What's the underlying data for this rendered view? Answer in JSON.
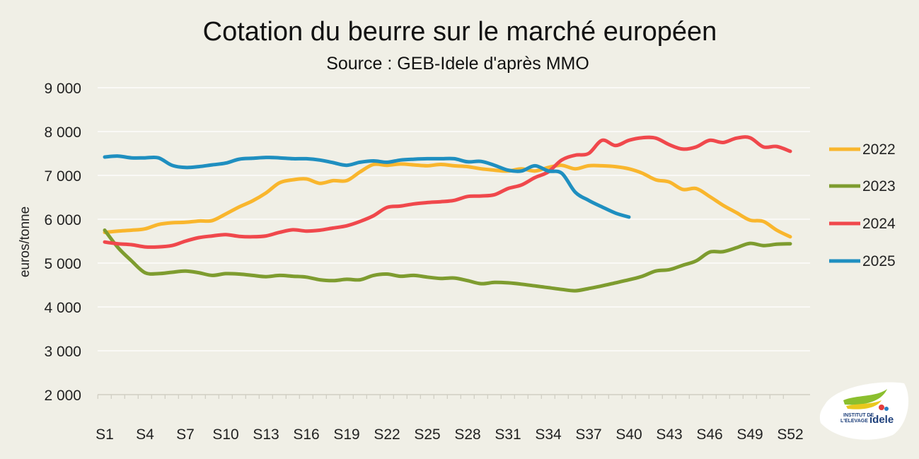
{
  "chart_data": {
    "type": "line",
    "title": "Cotation du beurre sur le marché européen",
    "subtitle": "Source : GEB-Idele d'après MMO",
    "ylabel": "euros/tonne",
    "xlabel": "",
    "ylim": [
      2000,
      9000
    ],
    "yticks": [
      2000,
      3000,
      4000,
      5000,
      6000,
      7000,
      8000,
      9000
    ],
    "ytick_labels": [
      "2 000",
      "3 000",
      "4 000",
      "5 000",
      "6 000",
      "7 000",
      "8 000",
      "9 000"
    ],
    "xlim": [
      1,
      52
    ],
    "xtick_labels": [
      "S1",
      "S4",
      "S7",
      "S10",
      "S13",
      "S16",
      "S19",
      "S22",
      "S25",
      "S28",
      "S31",
      "S34",
      "S37",
      "S40",
      "S43",
      "S46",
      "S49",
      "S52"
    ],
    "grid": "horizontal",
    "legend": "right",
    "series": [
      {
        "name": "2022",
        "color": "#f9b62d",
        "x": [
          1,
          2,
          3,
          4,
          5,
          6,
          7,
          8,
          9,
          10,
          11,
          12,
          13,
          14,
          15,
          16,
          17,
          18,
          19,
          20,
          21,
          22,
          23,
          24,
          25,
          26,
          27,
          28,
          29,
          30,
          31,
          32,
          33,
          34,
          35,
          36,
          37,
          38,
          39,
          40,
          41,
          42,
          43,
          44,
          45,
          46,
          47,
          48,
          49,
          50,
          51,
          52
        ],
        "y": [
          5700,
          5730,
          5750,
          5780,
          5880,
          5920,
          5930,
          5960,
          5970,
          6120,
          6280,
          6420,
          6600,
          6830,
          6900,
          6920,
          6820,
          6880,
          6880,
          7080,
          7250,
          7230,
          7260,
          7240,
          7220,
          7250,
          7220,
          7200,
          7150,
          7120,
          7100,
          7150,
          7100,
          7180,
          7230,
          7150,
          7220,
          7220,
          7200,
          7150,
          7050,
          6900,
          6850,
          6680,
          6700,
          6520,
          6320,
          6150,
          5980,
          5950,
          5750,
          5600
        ]
      },
      {
        "name": "2023",
        "color": "#7e9c2f",
        "x": [
          1,
          2,
          3,
          4,
          5,
          6,
          7,
          8,
          9,
          10,
          11,
          12,
          13,
          14,
          15,
          16,
          17,
          18,
          19,
          20,
          21,
          22,
          23,
          24,
          25,
          26,
          27,
          28,
          29,
          30,
          31,
          32,
          33,
          34,
          35,
          36,
          37,
          38,
          39,
          40,
          41,
          42,
          43,
          44,
          45,
          46,
          47,
          48,
          49,
          50,
          51,
          52
        ],
        "y": [
          5750,
          5350,
          5050,
          4780,
          4760,
          4790,
          4820,
          4780,
          4720,
          4760,
          4750,
          4720,
          4690,
          4720,
          4700,
          4680,
          4620,
          4600,
          4630,
          4620,
          4720,
          4750,
          4700,
          4720,
          4680,
          4650,
          4660,
          4600,
          4530,
          4560,
          4550,
          4520,
          4480,
          4440,
          4400,
          4370,
          4420,
          4480,
          4550,
          4620,
          4700,
          4820,
          4850,
          4950,
          5050,
          5250,
          5260,
          5350,
          5450,
          5400,
          5430,
          5440
        ]
      },
      {
        "name": "2024",
        "color": "#f0484c",
        "x": [
          1,
          2,
          3,
          4,
          5,
          6,
          7,
          8,
          9,
          10,
          11,
          12,
          13,
          14,
          15,
          16,
          17,
          18,
          19,
          20,
          21,
          22,
          23,
          24,
          25,
          26,
          27,
          28,
          29,
          30,
          31,
          32,
          33,
          34,
          35,
          36,
          37,
          38,
          39,
          40,
          41,
          42,
          43,
          44,
          45,
          46,
          47,
          48,
          49,
          50,
          51,
          52
        ],
        "y": [
          5480,
          5440,
          5420,
          5370,
          5370,
          5400,
          5500,
          5580,
          5620,
          5650,
          5610,
          5600,
          5620,
          5700,
          5760,
          5730,
          5750,
          5800,
          5850,
          5950,
          6080,
          6270,
          6300,
          6350,
          6380,
          6400,
          6430,
          6520,
          6530,
          6560,
          6700,
          6780,
          6950,
          7080,
          7350,
          7460,
          7500,
          7800,
          7680,
          7800,
          7860,
          7850,
          7700,
          7600,
          7650,
          7800,
          7750,
          7850,
          7860,
          7650,
          7660,
          7550
        ]
      },
      {
        "name": "2025",
        "color": "#1f8fc0",
        "x": [
          1,
          2,
          3,
          4,
          5,
          6,
          7,
          8,
          9,
          10,
          11,
          12,
          13,
          14,
          15,
          16,
          17,
          18,
          19,
          20,
          21,
          22,
          23,
          24,
          25,
          26,
          27,
          28,
          29,
          30,
          31,
          32,
          33,
          34,
          35,
          36,
          37,
          38,
          39,
          40
        ],
        "y": [
          7420,
          7440,
          7400,
          7400,
          7400,
          7230,
          7180,
          7200,
          7240,
          7280,
          7370,
          7390,
          7410,
          7400,
          7380,
          7380,
          7350,
          7290,
          7230,
          7300,
          7330,
          7300,
          7350,
          7370,
          7380,
          7380,
          7380,
          7310,
          7320,
          7230,
          7120,
          7100,
          7220,
          7100,
          7050,
          6620,
          6430,
          6280,
          6140,
          6050
        ]
      }
    ]
  }
}
